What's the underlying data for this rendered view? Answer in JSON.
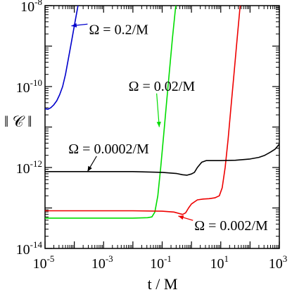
{
  "chart_data": {
    "type": "line",
    "xlabel": "t / M",
    "ylabel": "‖ 𝒞 ‖",
    "xscale": "log",
    "yscale": "log",
    "xlim_exp": [
      -5,
      3
    ],
    "ylim_exp": [
      -14,
      -8
    ],
    "x_ticks": [
      {
        "base": "10",
        "exp": "-5"
      },
      {
        "base": "10",
        "exp": "-3"
      },
      {
        "base": "10",
        "exp": "-1"
      },
      {
        "base": "10",
        "exp": "1"
      },
      {
        "base": "10",
        "exp": "3"
      }
    ],
    "y_ticks": [
      {
        "base": "10",
        "exp": "-14"
      },
      {
        "base": "10",
        "exp": "-12"
      },
      {
        "base": "10",
        "exp": "-10"
      },
      {
        "base": "10",
        "exp": "-8"
      }
    ],
    "grid": false,
    "series": [
      {
        "name": "Ω = 0.2/M",
        "color": "#0000cc",
        "x_log10": [
          -5,
          -4.9,
          -4.8,
          -4.7,
          -4.6,
          -4.5,
          -4.4,
          -4.3,
          -4.2,
          -4.1,
          -4.0,
          -3.9,
          -3.85
        ],
        "y_log10": [
          -10.55,
          -10.56,
          -10.52,
          -10.45,
          -10.35,
          -10.2,
          -10.0,
          -9.7,
          -9.3,
          -8.9,
          -8.5,
          -8.1,
          -7.9
        ]
      },
      {
        "name": "Ω = 0.02/M",
        "color": "#00dd00",
        "x_log10": [
          -5,
          -3.0,
          -2.0,
          -1.5,
          -1.35,
          -1.25,
          -1.15,
          -1.05,
          -0.95,
          -0.85,
          -0.75,
          -0.65,
          -0.55,
          -0.5
        ],
        "y_log10": [
          -13.25,
          -13.25,
          -13.25,
          -13.24,
          -13.22,
          -13.1,
          -12.7,
          -12.0,
          -11.2,
          -10.4,
          -9.6,
          -8.8,
          -8.1,
          -7.8
        ]
      },
      {
        "name": "Ω = 0.002/M",
        "color": "#ee0000",
        "x_log10": [
          -5,
          -3.0,
          -2.0,
          -1.0,
          -0.6,
          -0.3,
          -0.2,
          -0.1,
          0.0,
          0.2,
          0.4,
          0.6,
          0.8,
          0.95,
          1.05,
          1.15,
          1.25,
          1.35,
          1.45,
          1.55,
          1.65,
          1.7
        ],
        "y_log10": [
          -13.07,
          -13.07,
          -13.07,
          -13.08,
          -13.1,
          -13.16,
          -13.12,
          -13.0,
          -12.9,
          -12.8,
          -12.78,
          -12.77,
          -12.75,
          -12.7,
          -12.5,
          -12.0,
          -11.3,
          -10.5,
          -9.7,
          -8.9,
          -8.1,
          -7.8
        ]
      },
      {
        "name": "Ω = 0.0002/M",
        "color": "#000000",
        "x_log10": [
          -5,
          -3,
          -2,
          -1,
          -0.5,
          -0.3,
          -0.15,
          0,
          0.1,
          0.2,
          0.35,
          0.5,
          1.0,
          1.5,
          2.0,
          2.3,
          2.5,
          2.7,
          2.85,
          3.0
        ],
        "y_log10": [
          -12.1,
          -12.1,
          -12.1,
          -12.12,
          -12.15,
          -12.18,
          -12.19,
          -12.16,
          -12.12,
          -12.0,
          -11.87,
          -11.83,
          -11.83,
          -11.82,
          -11.79,
          -11.75,
          -11.7,
          -11.62,
          -11.55,
          -11.42
        ]
      }
    ],
    "annotations": [
      {
        "text": "Ω = 0.2/M",
        "color": "#0000cc",
        "x_log10": -3.5,
        "y_log10": -8.7,
        "arrow_to": [
          -4.1,
          -8.5
        ]
      },
      {
        "text": "Ω = 0.02/M",
        "color": "#00dd00",
        "x_log10": -2.15,
        "y_log10": -10.1,
        "arrow_to": [
          -1.1,
          -11.0
        ]
      },
      {
        "text": "Ω = 0.0002/M",
        "color": "#000000",
        "x_log10": -4.2,
        "y_log10": -11.65,
        "arrow_to": [
          -3.55,
          -12.1
        ]
      },
      {
        "text": "Ω = 0.002/M",
        "color": "#ee0000",
        "x_log10": 0.1,
        "y_log10": -13.55,
        "arrow_to": [
          -0.45,
          -13.2
        ]
      }
    ]
  }
}
